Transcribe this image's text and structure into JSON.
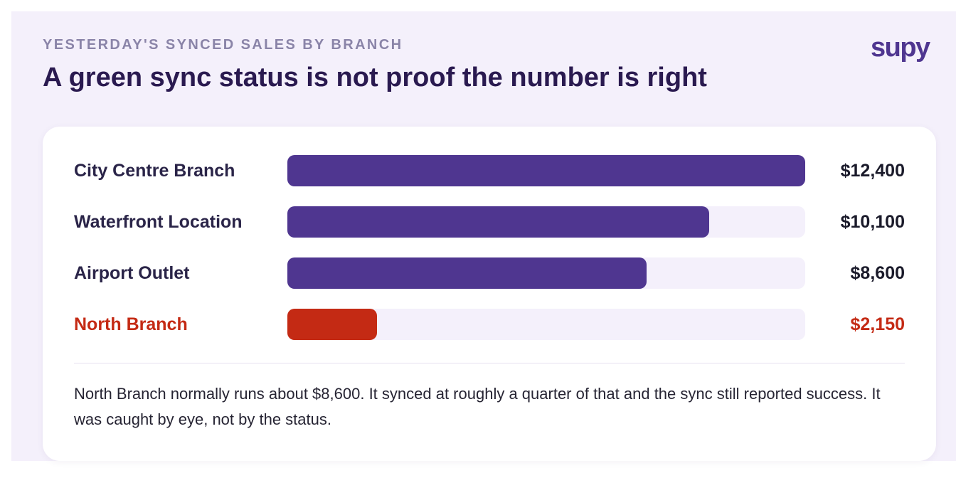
{
  "header": {
    "eyebrow": "YESTERDAY'S SYNCED SALES BY BRANCH",
    "title": "A green sync status is not proof the number is right",
    "logo_text": "supy"
  },
  "colors": {
    "bar_normal": "#4f3690",
    "bar_flagged": "#c42a14",
    "track": "#f4f0fb",
    "background": "#f4f0fb"
  },
  "chart_data": {
    "type": "bar",
    "orientation": "horizontal",
    "categories": [
      "City Centre Branch",
      "Waterfront Location",
      "Airport Outlet",
      "North Branch"
    ],
    "values": [
      12400,
      10100,
      8600,
      2150
    ],
    "value_labels": [
      "$12,400",
      "$10,100",
      "$8,600",
      "$2,150"
    ],
    "flagged": [
      false,
      false,
      false,
      true
    ],
    "xlim": [
      0,
      12400
    ],
    "grid": false
  },
  "note": "North Branch normally runs about $8,600. It synced at roughly a quarter of that and the sync still reported success. It was caught by eye, not by the status."
}
